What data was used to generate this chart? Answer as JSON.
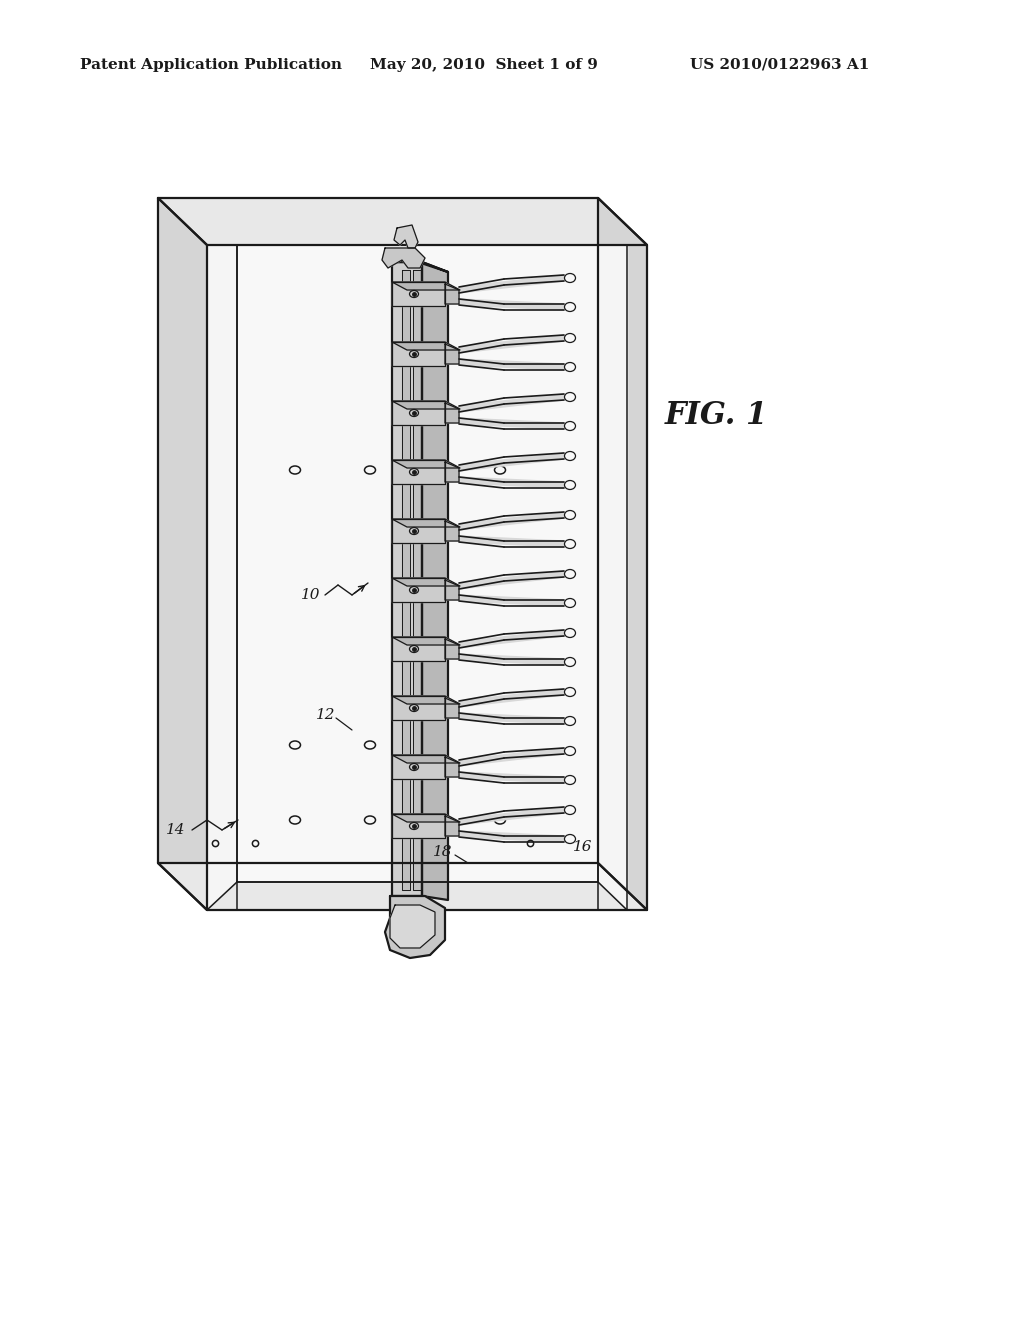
{
  "bg_color": "#ffffff",
  "line_color": "#1a1a1a",
  "fill_light": "#f5f5f5",
  "fill_mid": "#e8e8e8",
  "fill_dark": "#d5d5d5",
  "fill_rail": "#c8c8c8",
  "fill_hook": "#dcdcdc",
  "header_left": "Patent Application Publication",
  "header_mid": "May 20, 2010  Sheet 1 of 9",
  "header_right": "US 2010/0122963 A1",
  "fig_label": "FIG. 1",
  "lw_main": 1.6,
  "lw_thin": 1.1,
  "lw_detail": 0.9
}
